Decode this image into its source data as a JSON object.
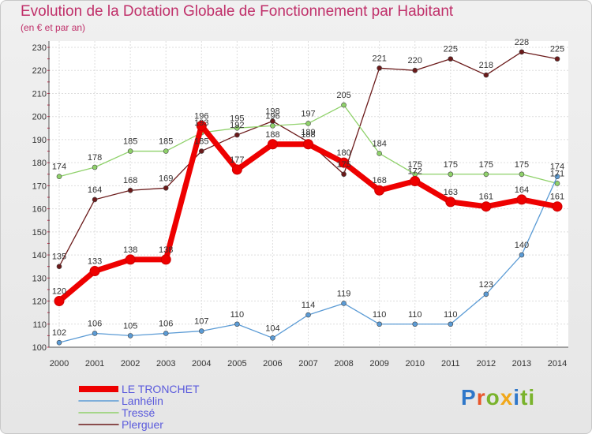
{
  "chart_data": {
    "type": "line",
    "title": "Evolution de la Dotation Globale de Fonctionnement par Habitant",
    "subtitle": "(en € et par an)",
    "x": [
      "2000",
      "2001",
      "2002",
      "2003",
      "2004",
      "2005",
      "2006",
      "2007",
      "2008",
      "2009",
      "2010",
      "2011",
      "2012",
      "2013",
      "2014"
    ],
    "ylim": [
      100,
      230
    ],
    "yticks": [
      100,
      110,
      120,
      130,
      140,
      150,
      160,
      170,
      180,
      190,
      200,
      210,
      220,
      230
    ],
    "grid": true,
    "legend_position": "bottom-left",
    "series": [
      {
        "name": "LE TRONCHET",
        "color": "#ee0000",
        "values": [
          120,
          133,
          138,
          138,
          196,
          177,
          188,
          188,
          180,
          168,
          172,
          163,
          161,
          164,
          161
        ]
      },
      {
        "name": "Lanhélin",
        "color": "#5b9bd5",
        "values": [
          102,
          106,
          105,
          106,
          107,
          110,
          104,
          114,
          119,
          110,
          110,
          110,
          123,
          140,
          174
        ]
      },
      {
        "name": "Tressé",
        "color": "#8fd16a",
        "values": [
          174,
          178,
          185,
          185,
          193,
          195,
          196,
          197,
          205,
          184,
          175,
          175,
          175,
          175,
          171
        ]
      },
      {
        "name": "Plerguer",
        "color": "#6b1a1a",
        "values": [
          135,
          164,
          168,
          169,
          185,
          192,
          198,
          189,
          175,
          221,
          220,
          225,
          218,
          228,
          225
        ]
      }
    ]
  },
  "logo": {
    "letters": [
      "P",
      "r",
      "o",
      "x",
      "i",
      "ti"
    ]
  }
}
